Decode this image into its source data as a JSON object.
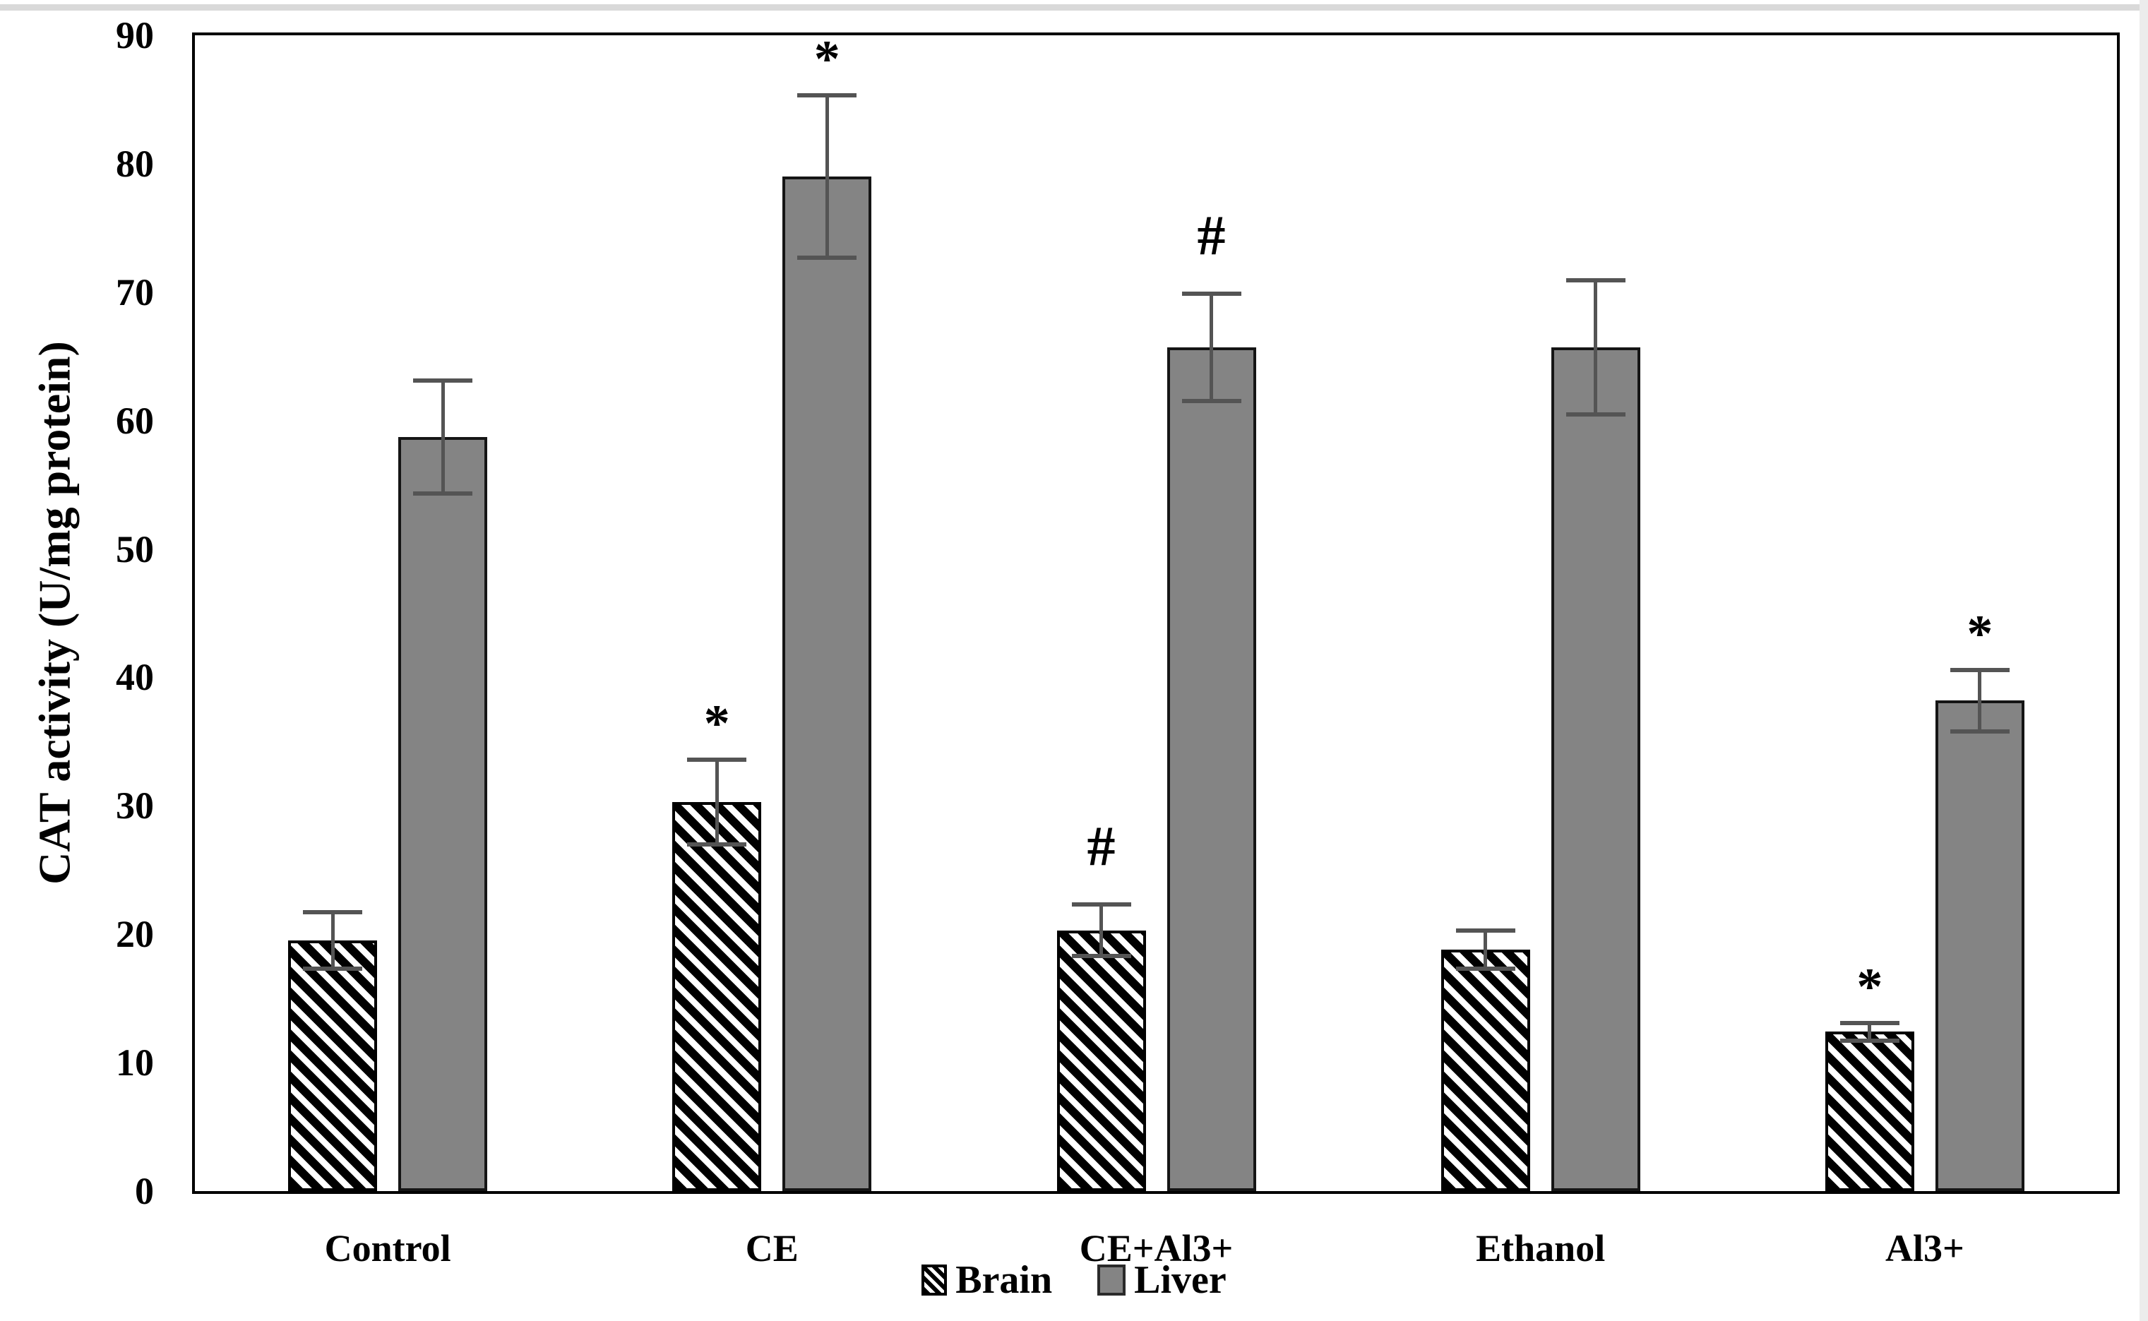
{
  "page": {
    "background": "#ffffff",
    "top_strip_color": "#d9d9d9",
    "right_strip_color": "#ececec"
  },
  "chart_data": {
    "type": "bar",
    "title": "",
    "xlabel": "",
    "ylabel": "CAT activity (U/mg protein)",
    "ylim": [
      0,
      90
    ],
    "yticks": [
      0,
      10,
      20,
      30,
      40,
      50,
      60,
      70,
      80,
      90
    ],
    "grid": false,
    "legend_position": "bottom-center",
    "categories": [
      "Control",
      "CE",
      "CE+Al3+",
      "Ethanol",
      "Al3+"
    ],
    "series": [
      {
        "name": "Brain",
        "style": "hatched-diagonal",
        "fill": "#ffffff",
        "hatch_color": "#000000",
        "values": [
          19.5,
          30.3,
          20.3,
          18.8,
          12.4
        ],
        "errors": [
          2.2,
          3.3,
          2.0,
          1.5,
          0.7
        ],
        "annotations": [
          "",
          "*",
          "#",
          "",
          "*"
        ]
      },
      {
        "name": "Liver",
        "style": "solid",
        "fill": "#848484",
        "values": [
          58.7,
          79.0,
          65.7,
          65.7,
          38.2
        ],
        "errors": [
          4.4,
          6.3,
          4.2,
          5.2,
          2.4
        ],
        "annotations": [
          "",
          "*",
          "#",
          "",
          "*"
        ]
      }
    ],
    "error_bar_color": "#545454",
    "bar_border_color": "#000000"
  }
}
